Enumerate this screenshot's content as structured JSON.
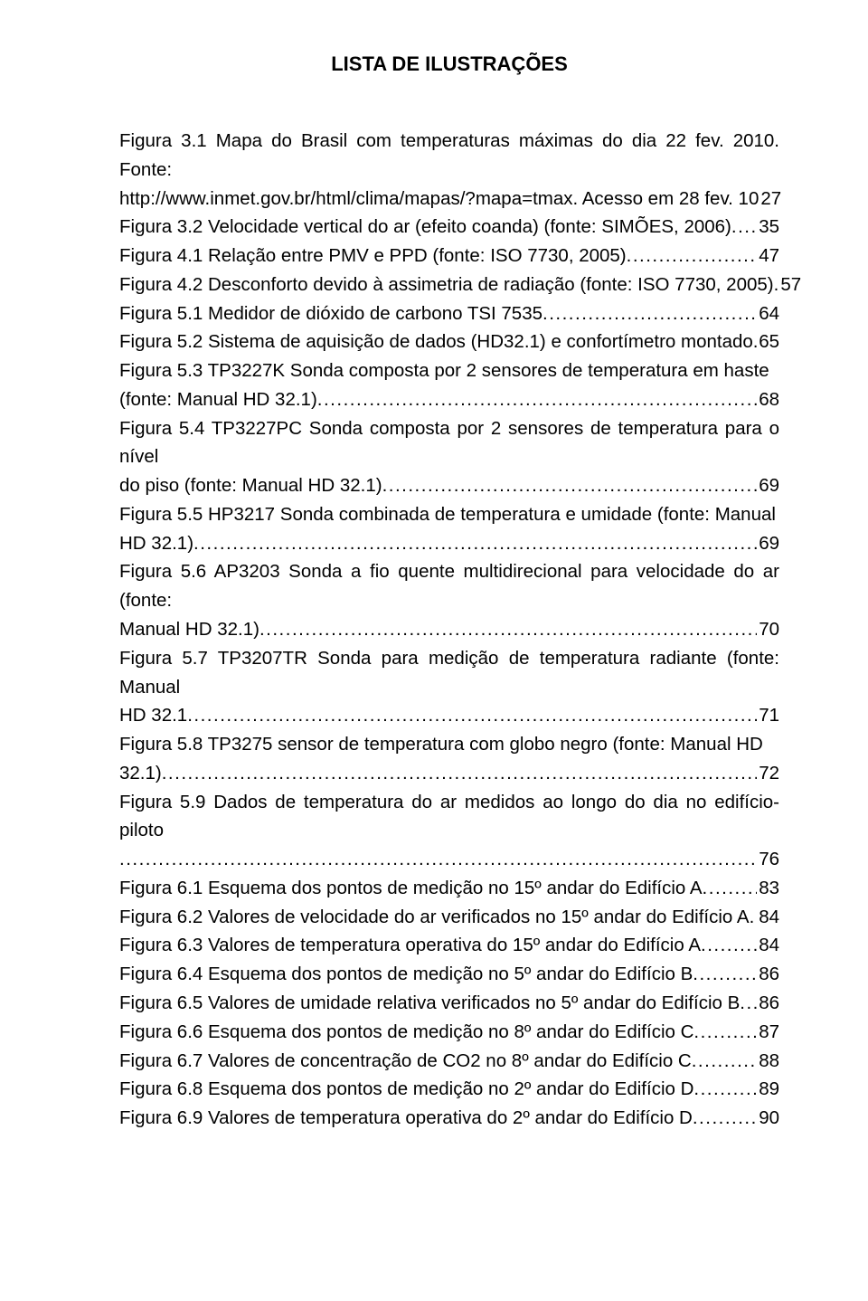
{
  "title": "LISTA DE ILUSTRAÇÕES",
  "entries": [
    {
      "pre": "Figura 3.1 Mapa do Brasil com temperaturas máximas do dia 22 fev. 2010. Fonte:",
      "last": "http://www.inmet.gov.br/html/clima/mapas/?mapa=tmax. Acesso em 28 fev. 10",
      "page": "27"
    },
    {
      "pre": "",
      "last": "Figura 3.2 Velocidade vertical do ar (efeito coanda) (fonte: SIMÕES, 2006)",
      "page": "35"
    },
    {
      "pre": "",
      "last": "Figura 4.1 Relação entre PMV e PPD (fonte: ISO 7730, 2005)",
      "page": "47"
    },
    {
      "pre": "",
      "last": "Figura 4.2 Desconforto devido à assimetria de radiação (fonte: ISO 7730, 2005).",
      "page": "57"
    },
    {
      "pre": "",
      "last": "Figura 5.1 Medidor de dióxido de carbono TSI 7535",
      "page": "64"
    },
    {
      "pre": "",
      "last": "Figura 5.2 Sistema de aquisição de dados (HD32.1) e confortímetro montado",
      "page": "65"
    },
    {
      "pre": "Figura 5.3 TP3227K  Sonda composta por 2 sensores de temperatura em haste",
      "last": "(fonte: Manual HD 32.1)",
      "page": "68"
    },
    {
      "pre": "Figura 5.4 TP3227PC Sonda composta por 2 sensores de temperatura para o nível",
      "last": "do piso (fonte: Manual HD 32.1)",
      "page": "69"
    },
    {
      "pre": "Figura 5.5 HP3217 Sonda combinada de temperatura e umidade (fonte: Manual",
      "last": "HD 32.1)",
      "page": "69"
    },
    {
      "pre": "Figura 5.6 AP3203 Sonda a fio quente multidirecional para velocidade do ar (fonte:",
      "last": "Manual HD 32.1)",
      "page": "70"
    },
    {
      "pre": "Figura 5.7 TP3207TR Sonda para medição de temperatura radiante (fonte: Manual",
      "last": "HD 32.1",
      "page": "71"
    },
    {
      "pre": "Figura 5.8 TP3275 sensor de temperatura com globo negro (fonte: Manual HD",
      "last": "32.1)",
      "page": "72"
    },
    {
      "pre": "Figura 5.9 Dados de temperatura do ar medidos ao longo do dia no edifício-piloto",
      "last": "",
      "page": "76"
    },
    {
      "pre": "",
      "last": "Figura 6.1 Esquema dos pontos de medição no 15º andar do Edifício A",
      "page": "83"
    },
    {
      "pre": "",
      "last": "Figura 6.2 Valores de velocidade do ar verificados no 15º andar do Edifício A",
      "page": "84"
    },
    {
      "pre": "",
      "last": "Figura 6.3 Valores de temperatura operativa do 15º andar do Edifício A",
      "page": "84"
    },
    {
      "pre": "",
      "last": "Figura 6.4 Esquema dos pontos de medição no 5º andar do Edifício B",
      "page": "86"
    },
    {
      "pre": "",
      "last": "Figura 6.5 Valores de umidade relativa verificados no 5º andar do Edifício B",
      "page": "86"
    },
    {
      "pre": "",
      "last": "Figura 6.6 Esquema dos pontos de medição no 8º andar do Edifício C",
      "page": "87"
    },
    {
      "pre": "",
      "last": "Figura 6.7 Valores de concentração de CO2 no 8º andar do Edifício C",
      "page": "88"
    },
    {
      "pre": "",
      "last": "Figura 6.8 Esquema dos pontos de medição no 2º andar do Edifício D",
      "page": "89"
    },
    {
      "pre": "",
      "last": "Figura 6.9 Valores de temperatura operativa do 2º andar do Edifício D",
      "page": "90"
    }
  ]
}
